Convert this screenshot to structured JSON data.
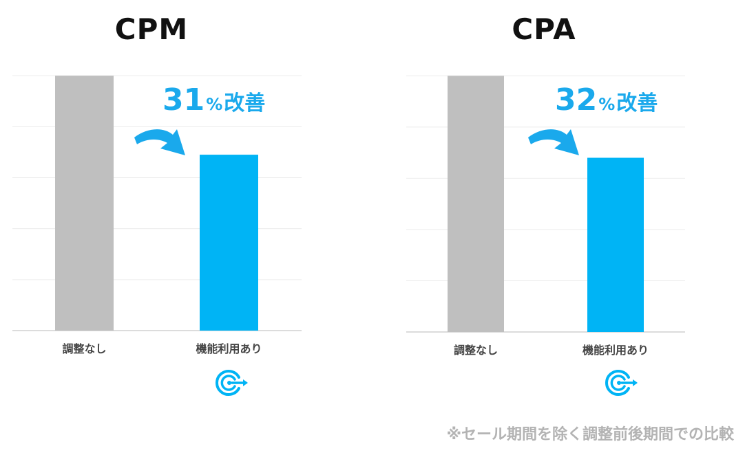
{
  "chart_data": [
    {
      "type": "bar",
      "title": "CPM",
      "categories": [
        "調整なし",
        "機能利用あり"
      ],
      "values": [
        100,
        69
      ],
      "ylim": [
        0,
        110
      ],
      "grid": true,
      "annotation": {
        "number": "31",
        "unit": "%",
        "text": "改善"
      },
      "colors": [
        "#bfbfbf",
        "#00b4f5"
      ]
    },
    {
      "type": "bar",
      "title": "CPA",
      "categories": [
        "調整なし",
        "機能利用あり"
      ],
      "values": [
        100,
        68
      ],
      "ylim": [
        0,
        110
      ],
      "grid": true,
      "annotation": {
        "number": "32",
        "unit": "%",
        "text": "改善"
      },
      "colors": [
        "#bfbfbf",
        "#00b4f5"
      ]
    }
  ],
  "icons": {
    "logo": "circular-arrow-logo-icon",
    "arrow": "curved-arrow-icon"
  },
  "accent_color": "#1aa9ec",
  "footnote": "※セール期間を除く調整前後期間での比較"
}
